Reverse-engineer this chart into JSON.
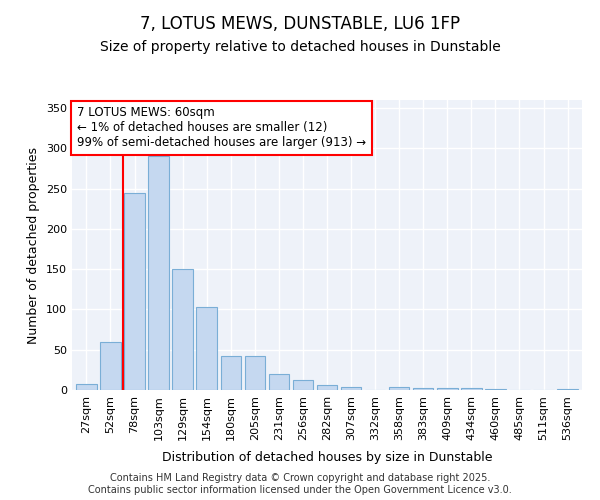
{
  "title": "7, LOTUS MEWS, DUNSTABLE, LU6 1FP",
  "subtitle": "Size of property relative to detached houses in Dunstable",
  "xlabel": "Distribution of detached houses by size in Dunstable",
  "ylabel": "Number of detached properties",
  "categories": [
    "27sqm",
    "52sqm",
    "78sqm",
    "103sqm",
    "129sqm",
    "154sqm",
    "180sqm",
    "205sqm",
    "231sqm",
    "256sqm",
    "282sqm",
    "307sqm",
    "332sqm",
    "358sqm",
    "383sqm",
    "409sqm",
    "434sqm",
    "460sqm",
    "485sqm",
    "511sqm",
    "536sqm"
  ],
  "values": [
    8,
    60,
    245,
    290,
    150,
    103,
    42,
    42,
    20,
    13,
    6,
    4,
    0,
    4,
    3,
    2,
    2,
    1,
    0,
    0,
    1
  ],
  "bar_color": "#c5d8f0",
  "bar_edge_color": "#7aaed6",
  "red_line_x": 1.5,
  "annotation_text": "7 LOTUS MEWS: 60sqm\n← 1% of detached houses are smaller (12)\n99% of semi-detached houses are larger (913) →",
  "annotation_box_facecolor": "white",
  "annotation_box_edgecolor": "red",
  "ylim": [
    0,
    360
  ],
  "yticks": [
    0,
    50,
    100,
    150,
    200,
    250,
    300,
    350
  ],
  "background_color": "#eef2f9",
  "grid_color": "#ffffff",
  "footer_text": "Contains HM Land Registry data © Crown copyright and database right 2025.\nContains public sector information licensed under the Open Government Licence v3.0.",
  "title_fontsize": 12,
  "subtitle_fontsize": 10,
  "tick_fontsize": 8,
  "ylabel_fontsize": 9,
  "xlabel_fontsize": 9,
  "footer_fontsize": 7,
  "annotation_fontsize": 8.5
}
